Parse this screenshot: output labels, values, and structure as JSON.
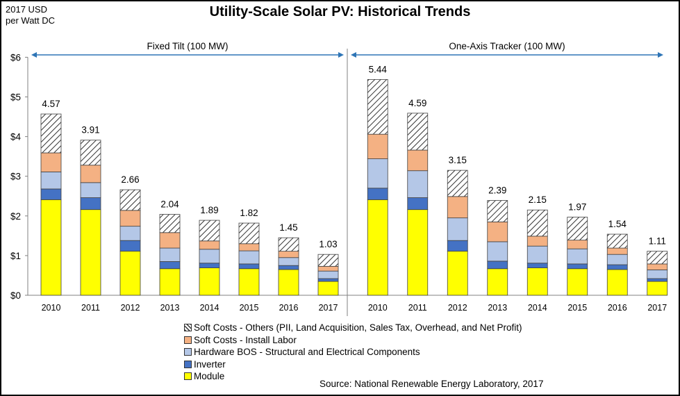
{
  "title": "Utility-Scale Solar PV: Historical Trends",
  "units_line1": "2017 USD",
  "units_line2": "per Watt DC",
  "source": "Source: National Renewable Energy Laboratory, 2017",
  "colors": {
    "module": "#ffff00",
    "inverter": "#4472c4",
    "hardware_bos": "#b4c7e7",
    "install_labor": "#f4b183",
    "soft_others": "#ffffff",
    "arrow": "#2e75b6"
  },
  "chart_data": {
    "type": "bar",
    "stacked": true,
    "ylabel": "2017 USD per Watt DC",
    "ylim": [
      0,
      6
    ],
    "yticks": [
      "$0",
      "$1",
      "$2",
      "$3",
      "$4",
      "$5",
      "$6"
    ],
    "legend_position": "bottom",
    "legend": [
      "Soft Costs - Others (PII, Land Acquisition, Sales Tax, Overhead, and Net Profit)",
      "Soft Costs - Install Labor",
      "Hardware BOS - Structural and Electrical Components",
      "Inverter",
      "Module"
    ],
    "panels": [
      {
        "label": "Fixed Tilt (100 MW)",
        "categories": [
          "2010",
          "2011",
          "2012",
          "2013",
          "2014",
          "2015",
          "2016",
          "2017"
        ],
        "totals": [
          "4.57",
          "3.91",
          "2.66",
          "2.04",
          "1.89",
          "1.82",
          "1.45",
          "1.03"
        ],
        "series": [
          {
            "name": "Module",
            "values": [
              2.41,
              2.16,
              1.11,
              0.67,
              0.69,
              0.67,
              0.65,
              0.35
            ]
          },
          {
            "name": "Inverter",
            "values": [
              0.27,
              0.3,
              0.27,
              0.18,
              0.12,
              0.12,
              0.1,
              0.07
            ]
          },
          {
            "name": "Hardware BOS - Structural and Electrical Components",
            "values": [
              0.43,
              0.38,
              0.36,
              0.34,
              0.35,
              0.33,
              0.2,
              0.19
            ]
          },
          {
            "name": "Soft Costs - Install Labor",
            "values": [
              0.48,
              0.44,
              0.4,
              0.39,
              0.21,
              0.18,
              0.16,
              0.12
            ]
          },
          {
            "name": "Soft Costs - Others (PII, Land Acquisition, Sales Tax, Overhead, and Net Profit)",
            "values": [
              0.98,
              0.63,
              0.52,
              0.46,
              0.52,
              0.52,
              0.34,
              0.3
            ]
          }
        ]
      },
      {
        "label": "One-Axis Tracker (100 MW)",
        "categories": [
          "2010",
          "2011",
          "2012",
          "2013",
          "2014",
          "2015",
          "2016",
          "2017"
        ],
        "totals": [
          "5.44",
          "4.59",
          "3.15",
          "2.39",
          "2.15",
          "1.97",
          "1.54",
          "1.11"
        ],
        "series": [
          {
            "name": "Module",
            "values": [
              2.41,
              2.16,
              1.11,
              0.67,
              0.69,
              0.67,
              0.65,
              0.35
            ]
          },
          {
            "name": "Inverter",
            "values": [
              0.29,
              0.3,
              0.27,
              0.19,
              0.12,
              0.12,
              0.12,
              0.07
            ]
          },
          {
            "name": "Hardware BOS - Structural and Electrical Components",
            "values": [
              0.74,
              0.68,
              0.57,
              0.49,
              0.43,
              0.38,
              0.26,
              0.22
            ]
          },
          {
            "name": "Soft Costs - Install Labor",
            "values": [
              0.62,
              0.52,
              0.54,
              0.5,
              0.25,
              0.22,
              0.16,
              0.15
            ]
          },
          {
            "name": "Soft Costs - Others (PII, Land Acquisition, Sales Tax, Overhead, and Net Profit)",
            "values": [
              1.38,
              0.93,
              0.66,
              0.54,
              0.66,
              0.58,
              0.35,
              0.32
            ]
          }
        ]
      }
    ]
  }
}
